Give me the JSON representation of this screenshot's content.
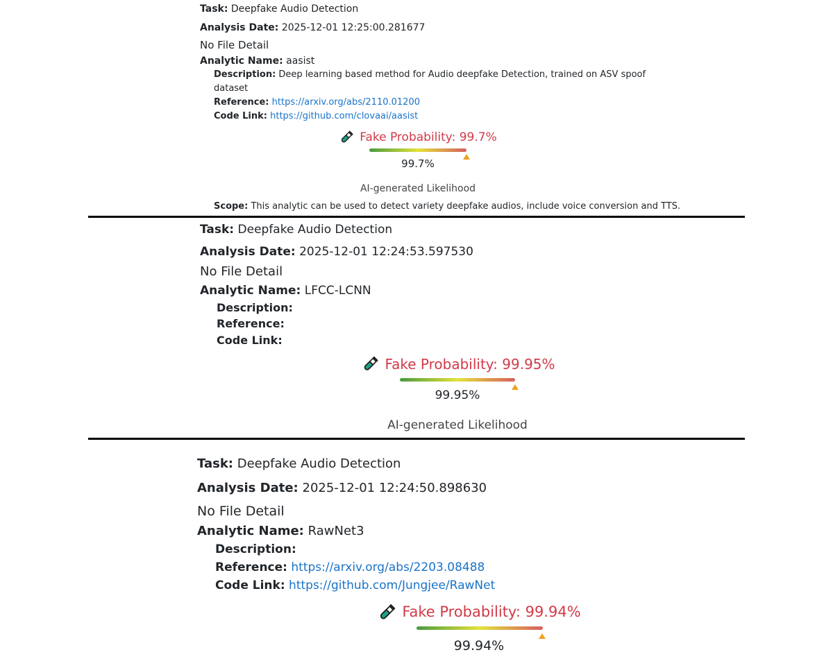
{
  "labels": {
    "task": "Task:",
    "date": "Analysis Date:",
    "analytic": "Analytic Name:",
    "description": "Description:",
    "reference": "Reference:",
    "code": "Code Link:",
    "scope": "Scope:",
    "likelihood": "AI-generated Likelihood"
  },
  "colors": {
    "fake": "#d13a48",
    "link": "#1a73c8",
    "indicator": "#f0a020"
  },
  "reports": [
    {
      "task": "Deepfake Audio Detection",
      "date": "2025-12-01 12:25:00.281677",
      "file": "No File Detail",
      "analytic": "aasist",
      "description": "Deep learning based method for Audio deepfake Detection, trained on ASV spoof",
      "description_cont": "dataset",
      "reference": "https://arxiv.org/abs/2110.01200",
      "code": "https://github.com/clovaai/aasist",
      "fake_label": "Fake Probability: 99.7%",
      "value": "99.7%",
      "probability": 99.7,
      "icon": "test-tube-icon",
      "scope": "This analytic can be used to detect variety deepfake audios, include voice conversion and TTS."
    },
    {
      "task": "Deepfake Audio Detection",
      "date": "2025-12-01 12:24:53.597530",
      "file": "No File Detail",
      "analytic": "LFCC-LCNN",
      "fake_label": "Fake Probability: 99.95%",
      "value": "99.95%",
      "probability": 99.95,
      "icon": "test-tube-icon"
    },
    {
      "task": "Deepfake Audio Detection",
      "date": "2025-12-01 12:24:50.898630",
      "file": "No File Detail",
      "analytic": "RawNet3",
      "reference": "https://arxiv.org/abs/2203.08488",
      "code": "https://github.com/Jungjee/RawNet",
      "fake_label": "Fake Probability: 99.94%",
      "value": "99.94%",
      "probability": 99.94,
      "icon": "test-tube-icon"
    }
  ]
}
